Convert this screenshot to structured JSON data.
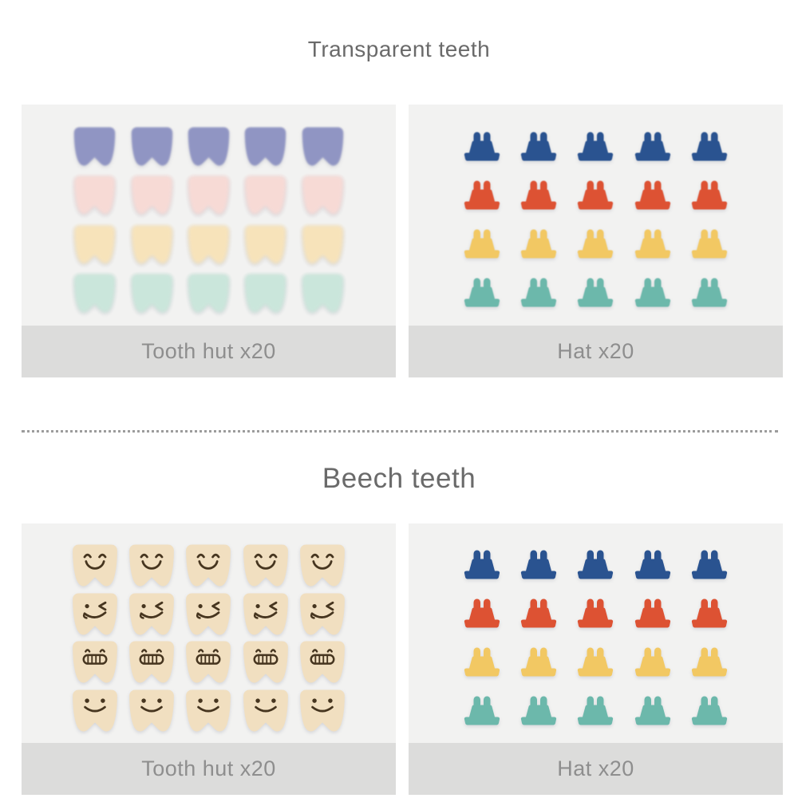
{
  "page": {
    "background": "#ffffff"
  },
  "colors": {
    "page_bg": "#ffffff",
    "panel_bg": "#f2f2f1",
    "caption_bg": "#dcdcdb",
    "caption_text": "#8e8e8e",
    "title_text": "#6a6a6a",
    "divider": "#9c9c9c",
    "face_stroke": "#46351f"
  },
  "sections": [
    {
      "title": "Transparent teeth",
      "panels": [
        {
          "item_type": "tooth",
          "caption": "Tooth hut x20",
          "columns": 5,
          "rows": [
            {
              "color": "#9095c3",
              "blur": 1.0,
              "opacity": 1
            },
            {
              "color": "#f8d9d4",
              "blur": 2.2,
              "opacity": 0.95
            },
            {
              "color": "#f8e3b8",
              "blur": 2.2,
              "opacity": 0.95
            },
            {
              "color": "#c8e6da",
              "blur": 2.2,
              "opacity": 0.95
            }
          ]
        },
        {
          "item_type": "hat",
          "caption": "Hat x20",
          "columns": 5,
          "rows": [
            {
              "color": "#2a5390",
              "blur": 0.4,
              "opacity": 1
            },
            {
              "color": "#dd5233",
              "blur": 0.4,
              "opacity": 1
            },
            {
              "color": "#f2c863",
              "blur": 0.4,
              "opacity": 1
            },
            {
              "color": "#6cb8ab",
              "blur": 0.4,
              "opacity": 1
            }
          ]
        }
      ]
    },
    {
      "title": "Beech teeth",
      "panels": [
        {
          "item_type": "tooth-face",
          "caption": "Tooth hut x20",
          "columns": 5,
          "rows": [
            {
              "color": "#f1dfc0",
              "face": "happy-closed-eyes",
              "blur": 0.3,
              "opacity": 1
            },
            {
              "color": "#f1dfc0",
              "face": "wink",
              "blur": 0.3,
              "opacity": 1
            },
            {
              "color": "#f1dfc0",
              "face": "grin-teeth",
              "blur": 0.3,
              "opacity": 1
            },
            {
              "color": "#f1dfc0",
              "face": "dot-smile",
              "blur": 0.3,
              "opacity": 1
            }
          ]
        },
        {
          "item_type": "hat",
          "caption": "Hat x20",
          "columns": 5,
          "rows": [
            {
              "color": "#2a5390",
              "blur": 0.3,
              "opacity": 1
            },
            {
              "color": "#dd5233",
              "blur": 0.3,
              "opacity": 1
            },
            {
              "color": "#f2c863",
              "blur": 0.3,
              "opacity": 1
            },
            {
              "color": "#6cb8ab",
              "blur": 0.3,
              "opacity": 1
            }
          ]
        }
      ]
    }
  ],
  "divider": {
    "style": "dotted"
  }
}
